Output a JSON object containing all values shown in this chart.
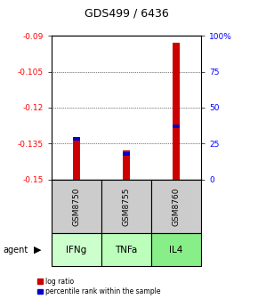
{
  "title": "GDS499 / 6436",
  "categories": [
    "IFNg",
    "TNFa",
    "IL4"
  ],
  "sample_ids": [
    "GSM8750",
    "GSM8755",
    "GSM8760"
  ],
  "log_ratios": [
    -0.133,
    -0.138,
    -0.093
  ],
  "percentiles": [
    28,
    18,
    37
  ],
  "ylim_left": [
    -0.15,
    -0.09
  ],
  "yticks_left": [
    -0.15,
    -0.135,
    -0.12,
    -0.105,
    -0.09
  ],
  "ytick_labels_left": [
    "-0.15",
    "-0.135",
    "-0.12",
    "-0.105",
    "-0.09"
  ],
  "ylim_right": [
    0,
    100
  ],
  "yticks_right": [
    0,
    25,
    50,
    75,
    100
  ],
  "ytick_labels_right": [
    "0",
    "25",
    "50",
    "75",
    "100%"
  ],
  "bar_color_red": "#cc0000",
  "bar_color_blue": "#0000cc",
  "agent_colors": [
    "#ccffcc",
    "#bbffbb",
    "#88ee88"
  ],
  "sample_bg": "#cccccc",
  "bar_width": 0.15
}
